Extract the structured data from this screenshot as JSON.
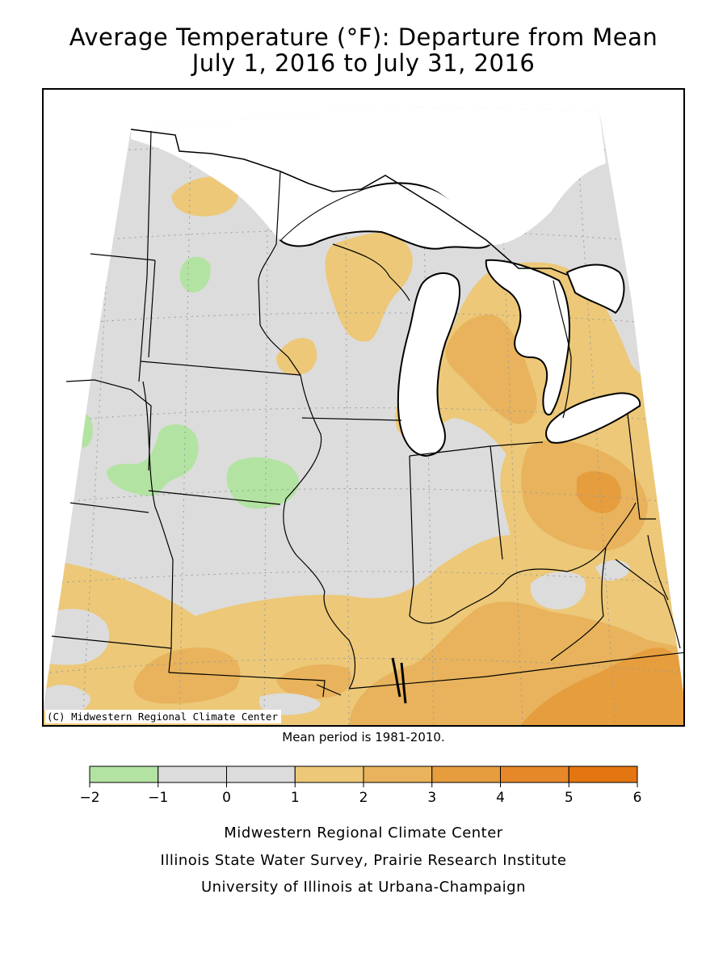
{
  "title": {
    "line1": "Average Temperature (°F): Departure from Mean",
    "line2": "July 1, 2016 to July 31, 2016"
  },
  "map": {
    "copyright": "(C) Midwestern Regional Climate Center",
    "region": "Midwest United States"
  },
  "mean_period": "Mean period is 1981-2010.",
  "legend": {
    "bins": [
      {
        "min": -2,
        "max": -1,
        "color": "#b3e3a2"
      },
      {
        "min": -1,
        "max": 0,
        "color": "#dcdcdc"
      },
      {
        "min": 0,
        "max": 1,
        "color": "#dcdcdc"
      },
      {
        "min": 1,
        "max": 2,
        "color": "#ecc878"
      },
      {
        "min": 2,
        "max": 3,
        "color": "#e8b35c"
      },
      {
        "min": 3,
        "max": 4,
        "color": "#e69d3e"
      },
      {
        "min": 4,
        "max": 5,
        "color": "#e6882a"
      },
      {
        "min": 5,
        "max": 6,
        "color": "#e47612"
      }
    ],
    "tick_labels": [
      "-2",
      "-1",
      "0",
      "1",
      "2",
      "3",
      "4",
      "5",
      "6"
    ]
  },
  "footer": {
    "line1": "Midwestern Regional Climate Center",
    "line2": "Illinois State Water Survey, Prairie Research Institute",
    "line3": "University of Illinois at Urbana-Champaign"
  }
}
